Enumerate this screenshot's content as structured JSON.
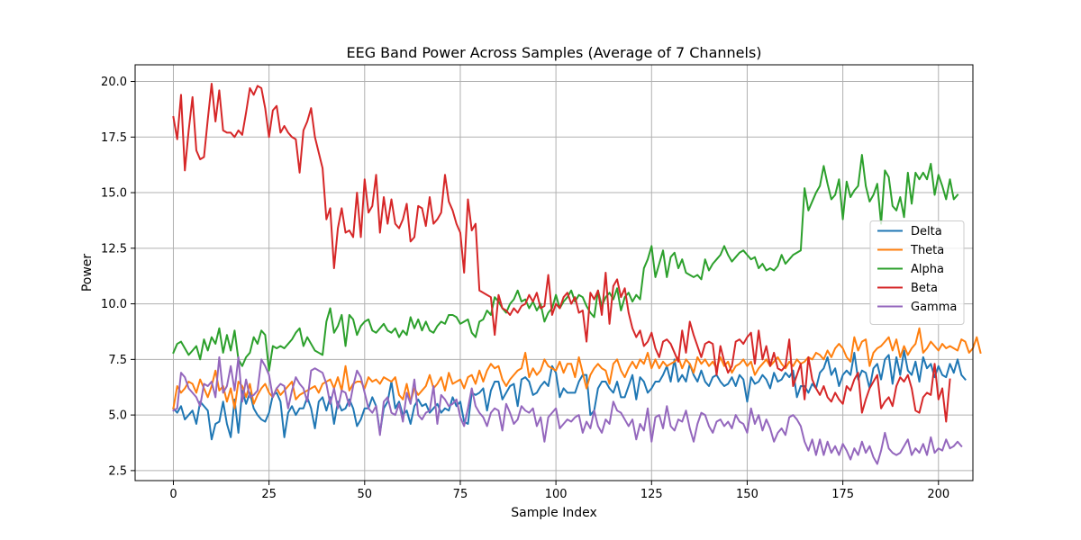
{
  "chart_data": {
    "type": "line",
    "title": "EEG Band Power Across Samples (Average of 7 Channels)",
    "xlabel": "Sample Index",
    "ylabel": "Power",
    "xlim": [
      -10,
      209
    ],
    "ylim": [
      2.05,
      20.75
    ],
    "xticks": [
      0,
      25,
      50,
      75,
      100,
      125,
      150,
      175,
      200
    ],
    "yticks": [
      2.5,
      5.0,
      7.5,
      10.0,
      12.5,
      15.0,
      17.5,
      20.0
    ],
    "xtick_labels": [
      "0",
      "25",
      "50",
      "75",
      "100",
      "125",
      "150",
      "175",
      "200"
    ],
    "ytick_labels": [
      "2.5",
      "5.0",
      "7.5",
      "10.0",
      "12.5",
      "15.0",
      "17.5",
      "20.0"
    ],
    "grid": true,
    "legend_position": "center-right",
    "x_start": 0,
    "x_step": 1,
    "series": [
      {
        "name": "Delta",
        "color": "#1f77b4",
        "values": [
          5.3,
          5.1,
          5.4,
          4.8,
          5.0,
          5.2,
          4.6,
          5.6,
          5.4,
          5.2,
          3.9,
          4.6,
          4.7,
          5.6,
          4.6,
          4.0,
          5.7,
          4.2,
          6.1,
          5.5,
          6.0,
          5.3,
          5.0,
          4.8,
          4.7,
          5.1,
          5.9,
          6.0,
          5.6,
          4.0,
          5.1,
          5.4,
          5.0,
          5.3,
          5.3,
          5.8,
          5.3,
          4.4,
          5.6,
          5.8,
          5.2,
          5.8,
          4.6,
          5.6,
          5.2,
          5.3,
          5.7,
          5.3,
          4.5,
          4.8,
          5.3,
          5.3,
          5.8,
          5.4,
          4.2,
          5.3,
          5.6,
          6.5,
          5.3,
          5.6,
          5.0,
          5.2,
          4.6,
          5.4,
          5.7,
          5.4,
          5.5,
          5.1,
          5.3,
          5.5,
          5.1,
          5.3,
          5.2,
          5.8,
          5.4,
          5.6,
          4.7,
          4.6,
          6.0,
          5.9,
          6.0,
          6.2,
          5.2,
          6.1,
          6.5,
          6.5,
          5.7,
          6.0,
          6.3,
          6.4,
          5.4,
          6.6,
          6.7,
          6.5,
          5.9,
          6.0,
          6.3,
          6.5,
          6.3,
          7.2,
          6.9,
          5.8,
          6.2,
          6.0,
          6.0,
          6.0,
          6.5,
          6.8,
          6.8,
          5.0,
          5.2,
          6.2,
          6.5,
          6.5,
          6.2,
          6.0,
          6.5,
          5.8,
          5.8,
          6.3,
          6.8,
          5.7,
          6.7,
          6.5,
          6.0,
          6.2,
          6.5,
          6.5,
          6.8,
          7.2,
          6.5,
          7.5,
          6.5,
          6.8,
          6.5,
          7.3,
          6.8,
          6.5,
          7.0,
          6.5,
          6.3,
          6.7,
          6.8,
          6.5,
          6.3,
          6.4,
          6.7,
          6.3,
          6.8,
          6.6,
          5.6,
          6.7,
          6.4,
          6.5,
          6.8,
          6.6,
          6.2,
          6.9,
          6.5,
          6.6,
          6.9,
          6.7,
          7.0,
          5.8,
          6.3,
          6.3,
          6.0,
          6.4,
          6.2,
          6.9,
          7.1,
          7.6,
          6.8,
          7.1,
          6.3,
          6.8,
          7.0,
          6.8,
          7.8,
          6.6,
          7.0,
          6.9,
          6.2,
          7.1,
          7.3,
          6.6,
          7.5,
          7.7,
          6.4,
          7.6,
          6.8,
          7.9,
          7.0,
          6.8,
          7.4,
          6.5,
          7.6,
          7.1,
          7.3,
          6.7,
          7.2,
          6.8,
          6.7,
          7.3,
          6.9,
          7.5,
          6.8,
          6.6
        ]
      },
      {
        "name": "Theta",
        "color": "#ff7f0e",
        "values": [
          5.3,
          6.3,
          6.0,
          6.2,
          6.5,
          6.4,
          6.0,
          6.6,
          6.2,
          5.8,
          6.3,
          7.0,
          6.1,
          6.3,
          5.6,
          6.2,
          5.3,
          6.5,
          6.3,
          5.8,
          6.4,
          5.5,
          5.9,
          6.2,
          6.4,
          6.0,
          5.8,
          6.2,
          5.9,
          6.1,
          6.3,
          6.5,
          5.7,
          5.9,
          6.0,
          6.1,
          6.2,
          6.3,
          6.0,
          6.4,
          6.5,
          6.6,
          6.2,
          6.7,
          6.1,
          7.2,
          6.1,
          6.4,
          6.5,
          6.5,
          6.2,
          6.7,
          6.5,
          6.6,
          6.4,
          6.7,
          6.6,
          6.5,
          6.7,
          5.9,
          5.7,
          6.4,
          5.6,
          6.2,
          5.9,
          6.1,
          6.3,
          6.8,
          6.2,
          6.4,
          6.7,
          6.1,
          6.9,
          6.4,
          6.5,
          6.6,
          6.2,
          6.7,
          6.8,
          6.4,
          7.0,
          6.5,
          7.0,
          7.3,
          7.1,
          7.2,
          6.6,
          6.3,
          6.6,
          6.8,
          7.0,
          7.1,
          7.8,
          6.7,
          7.1,
          6.8,
          7.0,
          7.5,
          7.2,
          7.1,
          7.0,
          7.4,
          6.9,
          7.3,
          7.3,
          6.7,
          7.6,
          6.9,
          6.2,
          6.8,
          7.1,
          7.3,
          7.1,
          7.0,
          6.4,
          7.3,
          7.5,
          7.0,
          6.7,
          7.1,
          7.4,
          7.1,
          7.5,
          7.3,
          7.8,
          7.1,
          7.5,
          7.1,
          7.4,
          7.2,
          7.3,
          7.4,
          7.6,
          7.1,
          7.5,
          7.3,
          6.9,
          7.6,
          7.3,
          7.5,
          7.2,
          7.4,
          7.1,
          7.6,
          7.2,
          7.4,
          6.9,
          7.2,
          7.3,
          7.5,
          7.2,
          7.4,
          6.8,
          7.1,
          7.3,
          7.5,
          7.2,
          7.4,
          7.6,
          7.3,
          7.1,
          7.4,
          7.2,
          7.5,
          7.3,
          7.4,
          7.6,
          7.5,
          7.8,
          7.7,
          7.5,
          7.9,
          7.6,
          8.0,
          8.2,
          8.0,
          7.6,
          7.4,
          8.5,
          7.9,
          8.3,
          8.4,
          7.2,
          7.8,
          8.0,
          8.1,
          8.3,
          8.5,
          7.9,
          8.4,
          7.6,
          8.1,
          7.7,
          8.0,
          8.2,
          8.9,
          7.8,
          8.0,
          8.3,
          8.1,
          7.9,
          8.2,
          8.0,
          8.1,
          8.0,
          7.9,
          8.4,
          8.3,
          7.8,
          8.0,
          8.5,
          7.8
        ]
      },
      {
        "name": "Alpha",
        "color": "#2ca02c",
        "values": [
          7.8,
          8.2,
          8.3,
          8.0,
          7.7,
          7.9,
          8.1,
          7.5,
          8.4,
          7.9,
          8.5,
          8.2,
          8.9,
          7.8,
          8.6,
          7.9,
          8.8,
          7.5,
          7.2,
          7.6,
          7.8,
          8.5,
          8.2,
          8.8,
          8.6,
          7.0,
          8.1,
          8.0,
          8.1,
          8.0,
          8.2,
          8.4,
          8.7,
          8.9,
          8.1,
          8.5,
          8.2,
          7.9,
          7.8,
          7.7,
          9.2,
          9.8,
          8.7,
          9.0,
          9.5,
          8.1,
          9.5,
          9.3,
          8.6,
          9.0,
          9.2,
          9.3,
          8.8,
          8.7,
          8.9,
          9.1,
          8.8,
          8.7,
          8.9,
          8.5,
          8.8,
          8.6,
          9.4,
          8.9,
          9.3,
          8.8,
          9.2,
          8.8,
          8.7,
          9.0,
          9.2,
          9.1,
          9.5,
          9.5,
          9.4,
          9.1,
          9.2,
          9.3,
          8.7,
          8.5,
          9.2,
          9.3,
          9.7,
          9.5,
          10.3,
          10.1,
          9.8,
          9.6,
          10.0,
          10.2,
          10.6,
          10.1,
          10.2,
          9.8,
          10.1,
          9.7,
          10.0,
          9.2,
          9.6,
          9.8,
          10.4,
          9.8,
          10.1,
          10.3,
          10.6,
          10.1,
          10.4,
          10.3,
          9.9,
          9.6,
          9.4,
          10.6,
          9.9,
          10.3,
          10.5,
          10.2,
          10.7,
          9.7,
          10.3,
          10.5,
          10.1,
          10.4,
          10.2,
          11.6,
          12.0,
          12.6,
          11.2,
          11.8,
          12.4,
          11.2,
          12.1,
          12.3,
          11.6,
          12.0,
          11.4,
          11.3,
          11.2,
          11.3,
          11.1,
          12.0,
          11.5,
          11.8,
          12.0,
          12.2,
          12.6,
          12.2,
          11.9,
          12.1,
          12.3,
          12.4,
          12.2,
          12.0,
          12.1,
          11.6,
          11.8,
          11.5,
          11.6,
          11.5,
          11.7,
          12.2,
          11.8,
          12.0,
          12.2,
          12.3,
          12.4,
          15.2,
          14.2,
          14.6,
          15.0,
          15.3,
          16.2,
          15.4,
          14.7,
          14.9,
          15.6,
          13.8,
          15.5,
          14.8,
          15.1,
          15.3,
          16.7,
          15.3,
          14.6,
          14.9,
          15.4,
          13.6,
          16.0,
          15.7,
          14.4,
          14.2,
          14.8,
          13.9,
          15.9,
          14.5,
          15.9,
          15.6,
          15.9,
          15.6,
          16.3,
          14.9,
          15.8,
          15.3,
          14.7,
          15.6,
          14.7,
          14.9
        ]
      },
      {
        "name": "Beta",
        "color": "#d62728",
        "values": [
          18.4,
          17.4,
          19.4,
          16.0,
          17.8,
          19.3,
          16.9,
          16.5,
          16.6,
          18.3,
          19.9,
          18.2,
          19.6,
          17.8,
          17.7,
          17.7,
          17.5,
          17.8,
          17.6,
          18.6,
          19.7,
          19.4,
          19.8,
          19.7,
          18.8,
          17.5,
          18.7,
          18.9,
          17.7,
          18.0,
          17.7,
          17.5,
          17.4,
          15.9,
          17.8,
          18.2,
          18.8,
          17.5,
          16.8,
          16.1,
          13.8,
          14.3,
          11.6,
          13.4,
          14.3,
          13.2,
          13.3,
          13.0,
          15.0,
          13.0,
          15.6,
          14.1,
          14.4,
          15.8,
          13.2,
          14.8,
          13.6,
          14.7,
          13.6,
          13.4,
          13.8,
          14.5,
          12.8,
          13.0,
          14.4,
          14.3,
          13.5,
          14.8,
          13.6,
          13.8,
          14.1,
          15.8,
          14.6,
          14.2,
          13.6,
          13.2,
          11.4,
          14.7,
          13.3,
          13.6,
          10.6,
          10.5,
          10.4,
          10.3,
          8.6,
          10.4,
          9.8,
          9.7,
          9.5,
          9.8,
          9.6,
          9.9,
          10.0,
          10.4,
          10.1,
          10.5,
          9.8,
          9.9,
          11.3,
          9.5,
          10.0,
          9.8,
          10.3,
          10.5,
          10.0,
          10.3,
          9.6,
          9.7,
          8.3,
          10.5,
          10.2,
          10.6,
          9.5,
          11.4,
          9.1,
          10.8,
          11.1,
          10.3,
          10.7,
          9.6,
          8.9,
          8.5,
          8.8,
          8.1,
          8.3,
          8.7,
          8.0,
          7.6,
          8.3,
          8.4,
          8.2,
          7.8,
          7.4,
          8.8,
          7.8,
          9.2,
          8.6,
          8.1,
          7.6,
          8.2,
          8.3,
          8.2,
          6.8,
          8.1,
          7.4,
          6.9,
          7.2,
          8.3,
          8.4,
          8.2,
          8.5,
          8.7,
          7.3,
          8.8,
          7.5,
          8.1,
          7.2,
          7.8,
          7.1,
          7.0,
          7.2,
          8.4,
          6.3,
          6.8,
          7.3,
          5.7,
          7.6,
          6.6,
          6.2,
          5.9,
          6.3,
          5.8,
          5.6,
          6.0,
          5.7,
          5.5,
          6.3,
          6.1,
          6.6,
          6.9,
          5.1,
          5.7,
          6.2,
          6.5,
          6.8,
          5.3,
          5.6,
          5.8,
          5.4,
          6.3,
          6.7,
          6.5,
          6.8,
          6.2,
          5.2,
          5.1,
          5.8,
          6.0,
          5.9,
          7.3,
          5.7,
          6.2,
          4.7,
          6.6
        ]
      },
      {
        "name": "Gamma",
        "color": "#9467bd",
        "values": [
          5.2,
          5.3,
          6.9,
          6.7,
          6.2,
          6.0,
          5.8,
          5.4,
          6.4,
          6.3,
          6.5,
          5.8,
          7.6,
          6.0,
          6.3,
          7.2,
          6.1,
          7.6,
          5.6,
          6.6,
          5.8,
          5.9,
          6.1,
          7.5,
          7.2,
          6.8,
          5.8,
          6.2,
          6.4,
          6.3,
          5.3,
          6.1,
          6.7,
          6.4,
          6.2,
          5.6,
          7.0,
          7.1,
          7.0,
          6.9,
          6.4,
          5.5,
          6.2,
          5.3,
          6.1,
          6.0,
          5.4,
          6.3,
          7.0,
          6.7,
          6.0,
          5.3,
          5.1,
          5.4,
          4.1,
          5.6,
          5.8,
          5.1,
          5.0,
          5.5,
          4.7,
          6.0,
          5.5,
          6.6,
          5.0,
          4.8,
          5.1,
          5.2,
          6.3,
          4.6,
          5.9,
          5.7,
          5.4,
          5.5,
          5.7,
          4.9,
          4.5,
          5.3,
          6.2,
          5.4,
          5.1,
          4.9,
          4.5,
          5.1,
          5.3,
          5.2,
          4.3,
          5.5,
          5.1,
          4.6,
          4.8,
          5.4,
          5.2,
          5.1,
          5.3,
          4.5,
          4.9,
          3.8,
          4.9,
          5.1,
          5.3,
          4.4,
          4.6,
          4.8,
          4.7,
          4.9,
          5.0,
          4.2,
          4.7,
          4.4,
          5.2,
          4.5,
          4.2,
          4.8,
          4.6,
          5.6,
          5.2,
          5.1,
          4.8,
          4.5,
          4.8,
          3.9,
          4.6,
          4.3,
          5.3,
          3.8,
          4.9,
          5.0,
          4.4,
          5.4,
          4.5,
          4.3,
          4.8,
          4.7,
          5.2,
          4.4,
          3.8,
          4.6,
          5.1,
          5.0,
          4.5,
          4.2,
          4.7,
          4.8,
          4.5,
          4.7,
          4.4,
          5.0,
          4.7,
          4.6,
          4.2,
          5.3,
          4.6,
          5.0,
          4.3,
          4.8,
          4.4,
          3.8,
          4.2,
          4.4,
          4.1,
          4.9,
          5.0,
          4.8,
          4.5,
          3.8,
          3.4,
          3.9,
          3.2,
          3.9,
          3.2,
          3.8,
          3.3,
          3.6,
          3.2,
          3.7,
          3.4,
          3.0,
          3.5,
          3.2,
          3.8,
          3.3,
          3.6,
          3.1,
          2.8,
          3.4,
          4.2,
          3.5,
          3.3,
          3.2,
          3.3,
          3.6,
          3.9,
          3.2,
          3.5,
          3.3,
          3.7,
          3.2,
          4.0,
          3.3,
          3.5,
          3.4,
          3.9,
          3.5,
          3.6,
          3.8,
          3.6
        ]
      }
    ]
  }
}
